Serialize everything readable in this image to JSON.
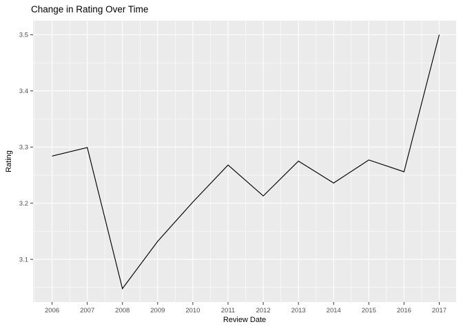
{
  "chart_data": {
    "type": "line",
    "title": "Change in Rating Over Time",
    "xlabel": "Review Date",
    "ylabel": "Rating",
    "x": [
      2006,
      2007,
      2008,
      2009,
      2010,
      2011,
      2012,
      2013,
      2014,
      2015,
      2016,
      2017
    ],
    "values": [
      3.284,
      3.299,
      3.048,
      3.132,
      3.202,
      3.268,
      3.213,
      3.275,
      3.236,
      3.277,
      3.256,
      3.5
    ],
    "xlim": [
      2005.46,
      2017.48
    ],
    "ylim": [
      3.024,
      3.525
    ],
    "x_major_ticks": [
      2006,
      2007,
      2008,
      2009,
      2010,
      2011,
      2012,
      2013,
      2014,
      2015,
      2016,
      2017
    ],
    "x_minor_ticks": [
      2005.5,
      2006.5,
      2007.5,
      2008.5,
      2009.5,
      2010.5,
      2011.5,
      2012.5,
      2013.5,
      2014.5,
      2015.5,
      2016.5,
      2017.5
    ],
    "y_major_ticks": [
      3.1,
      3.2,
      3.3,
      3.4,
      3.5
    ],
    "y_tick_labels": [
      "3.1",
      "3.2",
      "3.3",
      "3.4",
      "3.5"
    ],
    "y_minor_ticks": [
      3.05,
      3.15,
      3.25,
      3.35,
      3.45
    ],
    "grid": true,
    "legend": false,
    "style": {
      "panel_bg": "#EBEBEB",
      "grid_color": "#FFFFFF",
      "line_color": "#000000",
      "tick_label_color": "#4D4D4D",
      "tick_mark_color": "#333333",
      "title_color": "#000000",
      "background": "#FFFFFF"
    }
  }
}
